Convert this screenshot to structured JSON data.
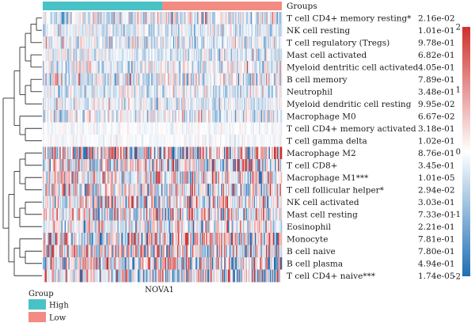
{
  "chart_data": {
    "type": "heatmap",
    "xlabel": "NOVA1",
    "top_annotation_label": "Groups",
    "groups": [
      {
        "name": "High",
        "color": "#48c2c5"
      },
      {
        "name": "Low",
        "color": "#f28b82"
      }
    ],
    "legend_title": "Group",
    "rows": [
      {
        "label": "T cell CD4+ memory resting*",
        "p": "2.16e-02",
        "bias": -0.2,
        "spread": 0.6
      },
      {
        "label": "NK cell resting",
        "p": "1.01e-01",
        "bias": -0.3,
        "spread": 0.4
      },
      {
        "label": "T cell regulatory (Tregs)",
        "p": "9.78e-01",
        "bias": -0.2,
        "spread": 0.5
      },
      {
        "label": "Mast cell activated",
        "p": "6.82e-01",
        "bias": -0.3,
        "spread": 0.4
      },
      {
        "label": "Myeloid dentritic cell activated",
        "p": "4.05e-01",
        "bias": -0.2,
        "spread": 0.5
      },
      {
        "label": "B cell memory",
        "p": "7.89e-01",
        "bias": -0.2,
        "spread": 0.6
      },
      {
        "label": "Neutrophil",
        "p": "3.48e-01",
        "bias": -0.2,
        "spread": 0.4
      },
      {
        "label": "Myeloid dendritic cell resting",
        "p": "9.95e-02",
        "bias": -0.2,
        "spread": 0.4
      },
      {
        "label": "Macrophage M0",
        "p": "6.67e-02",
        "bias": -0.25,
        "spread": 0.5
      },
      {
        "label": "T cell CD4+ memory activated",
        "p": "3.18e-01",
        "bias": -0.05,
        "spread": 0.15
      },
      {
        "label": "T cell gamma delta",
        "p": "1.02e-01",
        "bias": -0.05,
        "spread": 0.15
      },
      {
        "label": "Macrophage M2",
        "p": "8.76e-01",
        "bias": 0.0,
        "spread": 1.3
      },
      {
        "label": "T cell CD8+",
        "p": "3.45e-01",
        "bias": 0.0,
        "spread": 1.0
      },
      {
        "label": "Macrophage M1***",
        "p": "1.01e-05",
        "bias": 0.1,
        "spread": 0.9
      },
      {
        "label": "T cell follicular helper*",
        "p": "2.94e-02",
        "bias": 0.0,
        "spread": 0.9
      },
      {
        "label": "NK cell activated",
        "p": "3.03e-01",
        "bias": 0.0,
        "spread": 0.9
      },
      {
        "label": "Mast cell resting",
        "p": "7.33e-01",
        "bias": 0.0,
        "spread": 0.9
      },
      {
        "label": "Eosinophil",
        "p": "2.21e-01",
        "bias": -0.1,
        "spread": 0.7
      },
      {
        "label": "Monocyte",
        "p": "7.81e-01",
        "bias": 0.0,
        "spread": 1.2
      },
      {
        "label": "B cell naive",
        "p": "7.80e-01",
        "bias": 0.0,
        "spread": 1.0
      },
      {
        "label": "B cell plasma",
        "p": "4.94e-01",
        "bias": 0.0,
        "spread": 1.1
      },
      {
        "label": "T cell CD4+ naive***",
        "p": "1.74e-05",
        "bias": -0.1,
        "spread": 1.0
      }
    ],
    "color_scale": {
      "min": -2,
      "max": 2,
      "ticks": [
        "2",
        "1",
        "0",
        "-1",
        "-2"
      ],
      "colors": [
        "#1f6fb4",
        "#ffffff",
        "#d0302e"
      ]
    }
  }
}
